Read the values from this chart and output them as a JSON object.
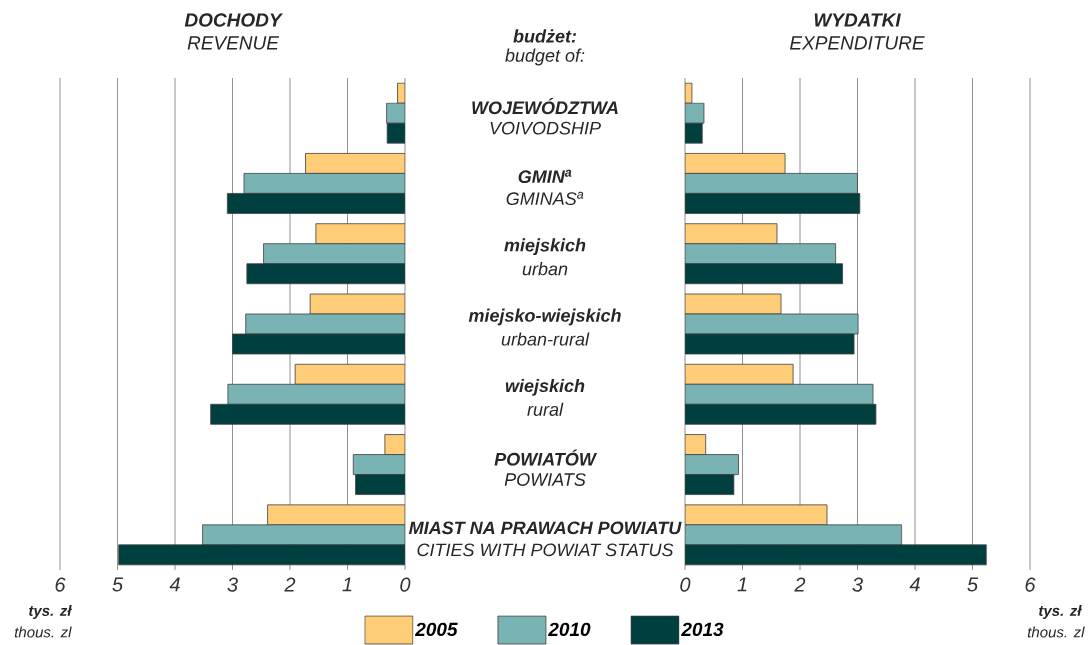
{
  "chart_data": [
    {
      "type": "bar",
      "orientation": "horizontal",
      "title": "DOCHODY",
      "subtitle": "REVENUE",
      "xlabel": "tys. zł",
      "annotations": [
        "budżet:",
        "thous. zl"
      ],
      "categories": [
        "WOJEWÓDZTWA",
        "GMIN$^{a}$",
        "miejskich",
        "miejsko-wiejskich",
        "wiejskich",
        "POWIATÓW",
        "MIAST NA PRAWACH POWIATU"
      ],
      "series": [
        {
          "name": "2005",
          "color": "#ffcc77",
          "values": [
            0.13,
            1.73,
            1.55,
            1.65,
            1.91,
            0.35,
            2.39
          ]
        },
        {
          "name": "2010",
          "color": "#7ab3b3",
          "values": [
            0.32,
            2.8,
            2.46,
            2.77,
            3.08,
            0.9,
            3.52
          ]
        },
        {
          "name": "2013",
          "color": "#003f3f",
          "values": [
            0.31,
            3.09,
            2.75,
            3.0,
            3.38,
            0.86,
            4.98
          ]
        }
      ],
      "xlim": [
        6,
        0
      ],
      "xticks": [
        0,
        1,
        2,
        3,
        4,
        5,
        6
      ],
      "grid": "x",
      "legend": "bottom"
    },
    {
      "type": "bar",
      "orientation": "horizontal",
      "title": "WYDATKI",
      "subtitle": "EXPENDITURE",
      "xlabel": "tys. zł",
      "annotations": [
        "budget of:",
        "thous. zl"
      ],
      "categories": [
        "VOIVODSHIP",
        "GMINAS$^{a}$",
        "urban",
        "urban-rural",
        "rural",
        "POWIATS",
        "CITIES WITH POWIAT STATUS"
      ],
      "series": [
        {
          "color": "#ffcc77",
          "values": [
            0.12,
            1.74,
            1.6,
            1.67,
            1.88,
            0.36,
            2.47
          ]
        },
        {
          "color": "#7ab3b3",
          "values": [
            0.33,
            3.0,
            2.62,
            3.01,
            3.27,
            0.93,
            3.77
          ]
        },
        {
          "color": "#003f3f",
          "values": [
            0.3,
            3.04,
            2.74,
            2.94,
            3.32,
            0.85,
            5.24
          ]
        }
      ],
      "xlim": [
        0,
        6
      ],
      "xticks": [
        0,
        1,
        2,
        3,
        4,
        5,
        6
      ],
      "grid": "x"
    }
  ]
}
